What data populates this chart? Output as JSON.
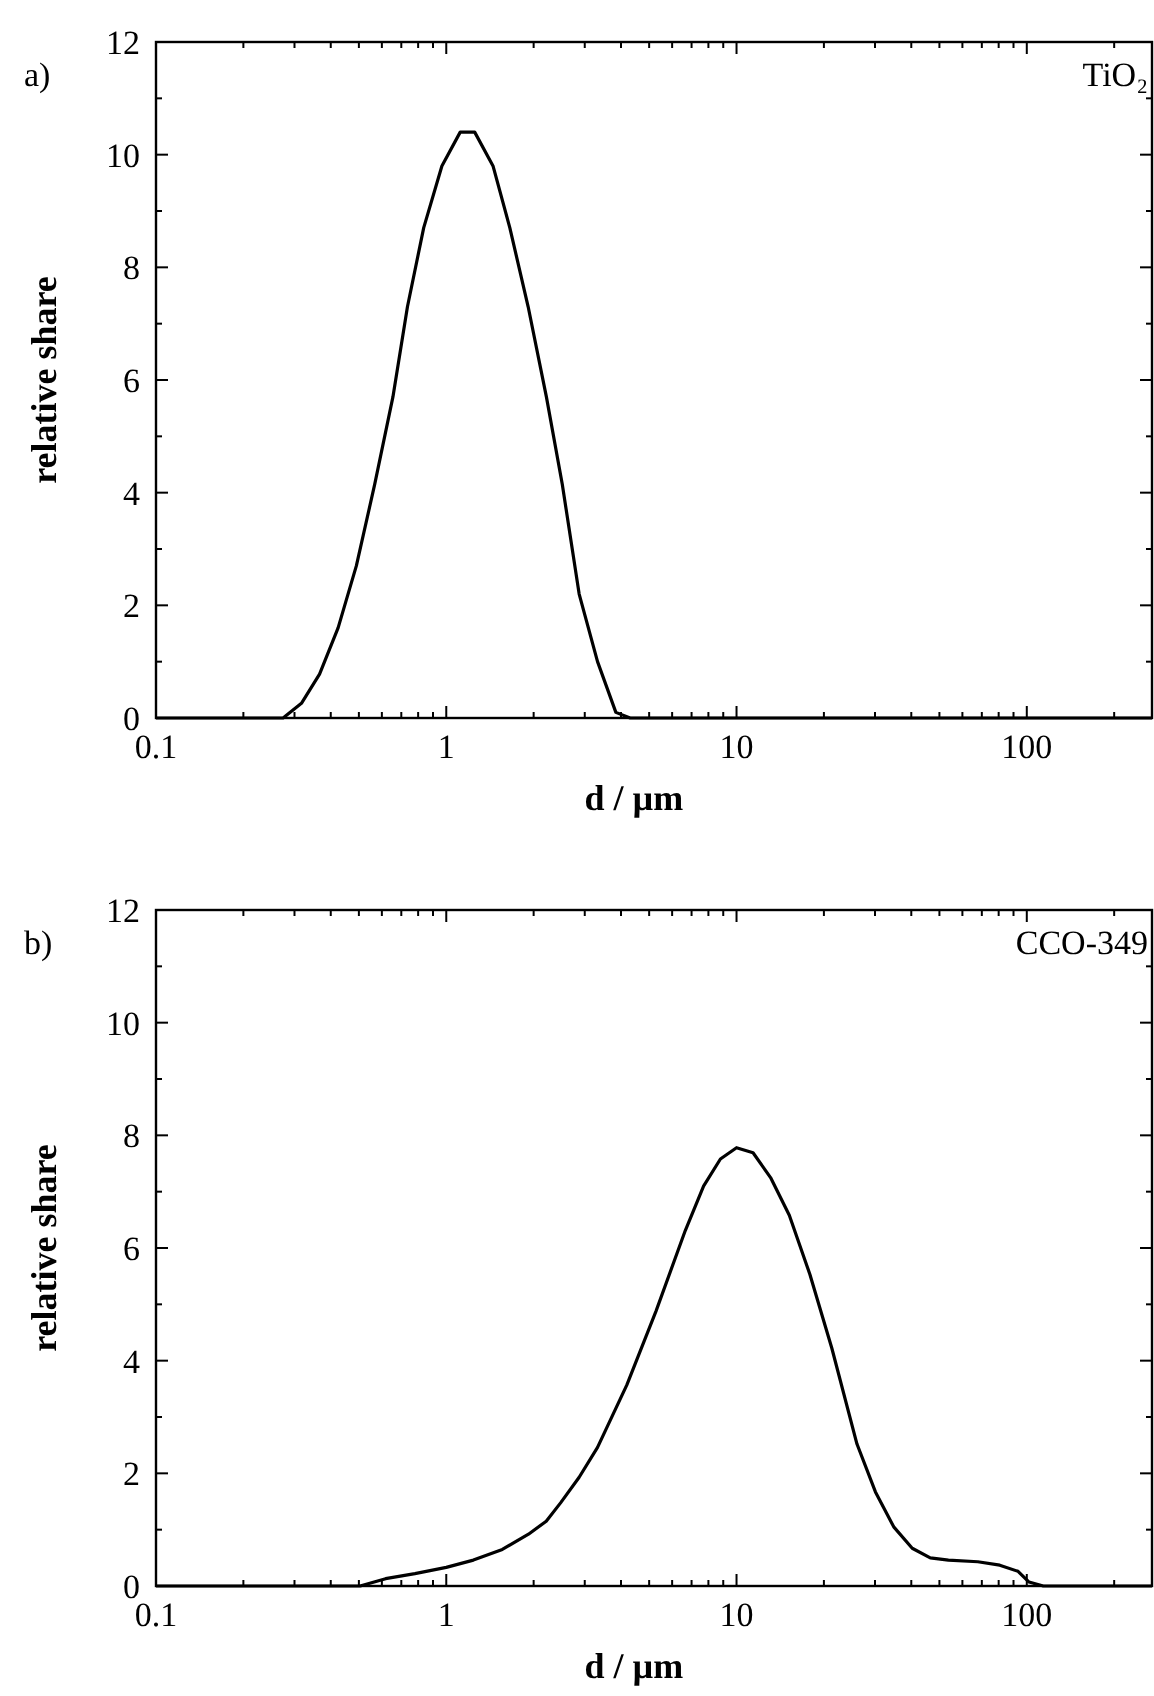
{
  "chart_data": [
    {
      "type": "line",
      "title": "a)",
      "xlabel": "d / µm",
      "ylabel": "relative share",
      "annotations": [
        "TiO₂"
      ],
      "log": "x",
      "xlim": [
        0.1,
        270
      ],
      "ylim": [
        0,
        12
      ],
      "xticks": [
        0.1,
        {
          "value": 0.2,
          "label": null
        },
        {
          "value": 0.3,
          "label": null
        },
        {
          "value": 0.4,
          "label": null
        },
        {
          "value": 0.5,
          "label": null
        },
        {
          "value": 0.6,
          "label": null
        },
        {
          "value": 0.7,
          "label": null
        },
        {
          "value": 0.8,
          "label": null
        },
        {
          "value": 0.9,
          "label": null
        },
        1,
        {
          "value": 2,
          "label": null
        },
        {
          "value": 3,
          "label": null
        },
        {
          "value": 4,
          "label": null
        },
        {
          "value": 5,
          "label": null
        },
        {
          "value": 6,
          "label": null
        },
        {
          "value": 7,
          "label": null
        },
        {
          "value": 8,
          "label": null
        },
        {
          "value": 9,
          "label": null
        },
        10,
        {
          "value": 20,
          "label": null
        },
        {
          "value": 30,
          "label": null
        },
        {
          "value": 40,
          "label": null
        },
        {
          "value": 50,
          "label": null
        },
        {
          "value": 60,
          "label": null
        },
        {
          "value": 70,
          "label": null
        },
        {
          "value": 80,
          "label": null
        },
        {
          "value": 90,
          "label": null
        },
        100,
        {
          "value": 200,
          "label": null
        }
      ],
      "yticks": [
        0,
        {
          "value": 1,
          "label": null
        },
        2,
        {
          "value": 3,
          "label": null
        },
        4,
        {
          "value": 5,
          "label": null
        },
        6,
        {
          "value": 7,
          "label": null
        },
        8,
        {
          "value": 9,
          "label": null
        },
        10,
        {
          "value": 11,
          "label": null
        },
        12
      ],
      "grid": false,
      "marker": "none",
      "line_style": "solid",
      "series": [
        {
          "color": "#000000",
          "x": [
            0.1,
            0.274,
            0.317,
            0.366,
            0.424,
            0.49,
            0.567,
            0.655,
            0.735,
            0.836,
            0.966,
            1.117,
            1.253,
            1.449,
            1.656,
            1.915,
            2.213,
            2.51,
            2.87,
            3.32,
            3.84,
            4.3,
            270
          ],
          "values": [
            0,
            0,
            0.26,
            0.78,
            1.6,
            2.7,
            4.15,
            5.7,
            7.3,
            8.7,
            9.8,
            10.4,
            10.4,
            9.8,
            8.7,
            7.3,
            5.7,
            4.15,
            2.2,
            1.0,
            0.1,
            0,
            0
          ]
        }
      ]
    },
    {
      "type": "line",
      "title": "b)",
      "xlabel": "d / µm",
      "ylabel": "relative share",
      "annotations": [
        "CCO-349"
      ],
      "log": "x",
      "xlim": [
        0.1,
        270
      ],
      "ylim": [
        0,
        12
      ],
      "xticks": [
        0.1,
        {
          "value": 0.2,
          "label": null
        },
        {
          "value": 0.3,
          "label": null
        },
        {
          "value": 0.4,
          "label": null
        },
        {
          "value": 0.5,
          "label": null
        },
        {
          "value": 0.6,
          "label": null
        },
        {
          "value": 0.7,
          "label": null
        },
        {
          "value": 0.8,
          "label": null
        },
        {
          "value": 0.9,
          "label": null
        },
        1,
        {
          "value": 2,
          "label": null
        },
        {
          "value": 3,
          "label": null
        },
        {
          "value": 4,
          "label": null
        },
        {
          "value": 5,
          "label": null
        },
        {
          "value": 6,
          "label": null
        },
        {
          "value": 7,
          "label": null
        },
        {
          "value": 8,
          "label": null
        },
        {
          "value": 9,
          "label": null
        },
        10,
        {
          "value": 20,
          "label": null
        },
        {
          "value": 30,
          "label": null
        },
        {
          "value": 40,
          "label": null
        },
        {
          "value": 50,
          "label": null
        },
        {
          "value": 60,
          "label": null
        },
        {
          "value": 70,
          "label": null
        },
        {
          "value": 80,
          "label": null
        },
        {
          "value": 90,
          "label": null
        },
        100,
        {
          "value": 200,
          "label": null
        }
      ],
      "yticks": [
        0,
        {
          "value": 1,
          "label": null
        },
        2,
        {
          "value": 3,
          "label": null
        },
        4,
        {
          "value": 5,
          "label": null
        },
        6,
        {
          "value": 7,
          "label": null
        },
        8,
        {
          "value": 9,
          "label": null
        },
        10,
        {
          "value": 11,
          "label": null
        },
        12
      ],
      "grid": false,
      "marker": "none",
      "line_style": "solid",
      "series": [
        {
          "color": "#000000",
          "x": [
            0.1,
            0.505,
            0.618,
            0.78,
            1,
            1.24,
            1.56,
            1.92,
            2.21,
            2.48,
            2.87,
            3.32,
            4.19,
            5.28,
            6.66,
            7.7,
            8.8,
            10,
            11.4,
            13.1,
            15.2,
            17.9,
            21.3,
            26,
            30.1,
            34.8,
            40.3,
            46.5,
            53.7,
            67.8,
            80.7,
            93.3,
            101.8,
            114,
            270
          ],
          "values": [
            0,
            0,
            0.13,
            0.22,
            0.33,
            0.46,
            0.65,
            0.92,
            1.15,
            1.48,
            1.93,
            2.46,
            3.57,
            4.88,
            6.31,
            7.1,
            7.58,
            7.78,
            7.69,
            7.25,
            6.58,
            5.53,
            4.22,
            2.52,
            1.67,
            1.05,
            0.67,
            0.5,
            0.46,
            0.43,
            0.37,
            0.26,
            0.07,
            0,
            0
          ]
        }
      ]
    }
  ]
}
